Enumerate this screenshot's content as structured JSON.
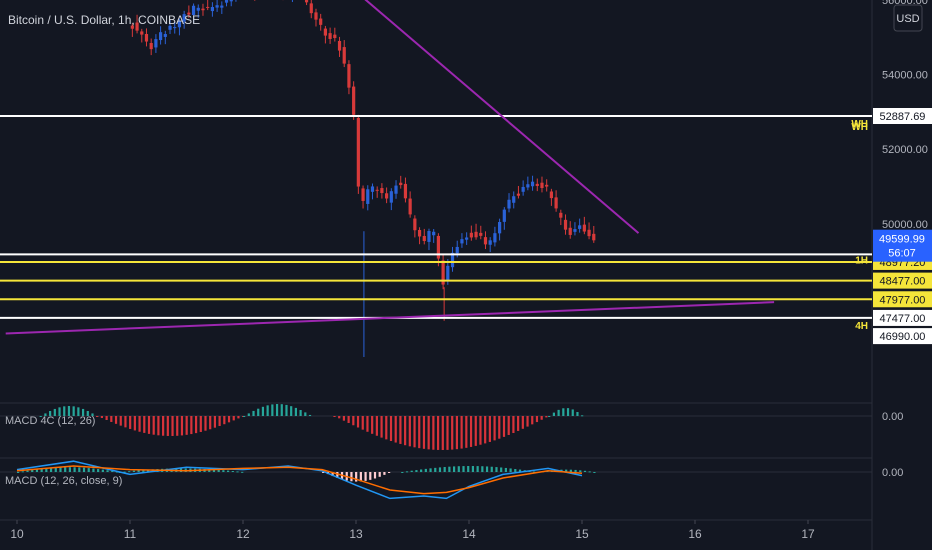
{
  "symbol_title": "Bitcoin / U.S. Dollar, 1h, COINBASE",
  "currency_badge": "USD",
  "colors": {
    "background": "#131722",
    "up": "#2a62d8",
    "down": "#d83a3a",
    "trendline": "#9c27b0",
    "level_white": "#ffffff",
    "level_yellow": "#f5e53a",
    "macd_line": "#2196f3",
    "signal_line": "#ff6d00"
  },
  "chart_data": [
    {
      "type": "candlestick",
      "title": "Bitcoin / U.S. Dollar, 1h, COINBASE",
      "x_ticks": [
        "10",
        "11",
        "12",
        "13",
        "14",
        "15",
        "16",
        "17"
      ],
      "y_ticks": [
        "56000.00",
        "54000.00",
        "52000.00",
        "50000.00"
      ],
      "ylim": [
        46500,
        56200
      ],
      "current_price": "49599.99",
      "countdown": "56:07",
      "path_points": [
        [
          11.0,
          55400
        ],
        [
          11.1,
          55200
        ],
        [
          11.2,
          54700
        ],
        [
          11.3,
          55100
        ],
        [
          11.4,
          55300
        ],
        [
          11.5,
          55600
        ],
        [
          11.6,
          55800
        ],
        [
          11.7,
          55700
        ],
        [
          11.85,
          55900
        ],
        [
          12.0,
          56200
        ],
        [
          12.2,
          56200
        ],
        [
          12.35,
          56250
        ],
        [
          12.45,
          56150
        ],
        [
          12.55,
          56050
        ],
        [
          12.65,
          55600
        ],
        [
          12.75,
          55100
        ],
        [
          12.85,
          54900
        ],
        [
          12.93,
          54200
        ],
        [
          13.0,
          52900
        ],
        [
          13.03,
          51600
        ],
        [
          13.06,
          50100
        ],
        [
          13.1,
          50900
        ],
        [
          13.2,
          51000
        ],
        [
          13.3,
          50600
        ],
        [
          13.4,
          51200
        ],
        [
          13.5,
          50200
        ],
        [
          13.6,
          49500
        ],
        [
          13.7,
          49900
        ],
        [
          13.75,
          49000
        ],
        [
          13.78,
          48300
        ],
        [
          13.82,
          48700
        ],
        [
          13.9,
          49400
        ],
        [
          14.0,
          49700
        ],
        [
          14.1,
          49700
        ],
        [
          14.2,
          49400
        ],
        [
          14.3,
          50200
        ],
        [
          14.4,
          50700
        ],
        [
          14.5,
          50900
        ],
        [
          14.6,
          51100
        ],
        [
          14.7,
          51000
        ],
        [
          14.8,
          50300
        ],
        [
          14.9,
          49700
        ],
        [
          15.0,
          49900
        ],
        [
          15.1,
          49600
        ]
      ],
      "price_levels": [
        {
          "price": 52887.69,
          "label": "52887.69",
          "tag": "WH",
          "color": "white"
        },
        {
          "price": 49180,
          "label": "",
          "tag": "1H",
          "color": "white"
        },
        {
          "price": 48977.2,
          "label": "48977.20",
          "tag": "",
          "color": "yellow"
        },
        {
          "price": 48477.0,
          "label": "48477.00",
          "tag": "",
          "color": "yellow"
        },
        {
          "price": 47977.0,
          "label": "47977.00",
          "tag": "",
          "color": "yellow"
        },
        {
          "price": 47477.0,
          "label": "47477.00",
          "tag": "4H",
          "color": "white"
        }
      ],
      "extra_price_label": "46990.00",
      "trendlines": [
        {
          "from": [
            12.97,
            56300
          ],
          "to": [
            15.5,
            49750
          ]
        },
        {
          "from": [
            9.9,
            47060
          ],
          "to": [
            16.7,
            47900
          ]
        }
      ]
    },
    {
      "type": "histogram",
      "title": "MACD 4C (12, 26)",
      "zero_label": "0.00",
      "segments": [
        {
          "from": 10.2,
          "to": 10.7,
          "peak": 0.5,
          "color": "green"
        },
        {
          "from": 10.7,
          "to": 12.0,
          "peak": -1.0,
          "color": "red"
        },
        {
          "from": 12.0,
          "to": 12.6,
          "peak": 0.6,
          "color": "green"
        },
        {
          "from": 12.8,
          "to": 14.7,
          "peak": -1.7,
          "color": "red"
        },
        {
          "from": 14.7,
          "to": 15.0,
          "peak": 0.4,
          "color": "green"
        }
      ]
    },
    {
      "type": "line",
      "title": "MACD (12, 26, close, 9)",
      "zero_label": "0.00",
      "series": [
        {
          "name": "MACD",
          "points": [
            [
              10.0,
              0.2
            ],
            [
              10.5,
              0.9
            ],
            [
              11.0,
              -0.2
            ],
            [
              11.5,
              0.4
            ],
            [
              12.0,
              0.2
            ],
            [
              12.4,
              0.5
            ],
            [
              12.7,
              0.1
            ],
            [
              13.0,
              -1.1
            ],
            [
              13.3,
              -2.2
            ],
            [
              13.6,
              -2.0
            ],
            [
              13.8,
              -2.2
            ],
            [
              14.0,
              -1.2
            ],
            [
              14.3,
              -0.2
            ],
            [
              14.7,
              0.3
            ],
            [
              15.0,
              -0.3
            ]
          ]
        },
        {
          "name": "Signal",
          "points": [
            [
              10.0,
              0.1
            ],
            [
              10.5,
              0.5
            ],
            [
              11.0,
              0.2
            ],
            [
              11.5,
              0.1
            ],
            [
              12.0,
              0.3
            ],
            [
              12.4,
              0.4
            ],
            [
              12.7,
              0.2
            ],
            [
              13.0,
              -0.6
            ],
            [
              13.3,
              -1.5
            ],
            [
              13.6,
              -1.8
            ],
            [
              13.8,
              -1.7
            ],
            [
              14.0,
              -1.3
            ],
            [
              14.3,
              -0.5
            ],
            [
              14.7,
              0.1
            ],
            [
              15.0,
              -0.1
            ]
          ]
        }
      ],
      "histogram_segments": [
        {
          "from": 10.0,
          "to": 10.9,
          "peak": 0.4,
          "color": "teal"
        },
        {
          "from": 10.9,
          "to": 12.0,
          "peak": 0.3,
          "color": "teal"
        },
        {
          "from": 12.7,
          "to": 13.3,
          "peak": -0.8,
          "color": "pink"
        },
        {
          "from": 13.4,
          "to": 14.6,
          "peak": 0.5,
          "color": "teal"
        },
        {
          "from": 14.6,
          "to": 15.1,
          "peak": 0.2,
          "color": "teal"
        }
      ]
    }
  ]
}
